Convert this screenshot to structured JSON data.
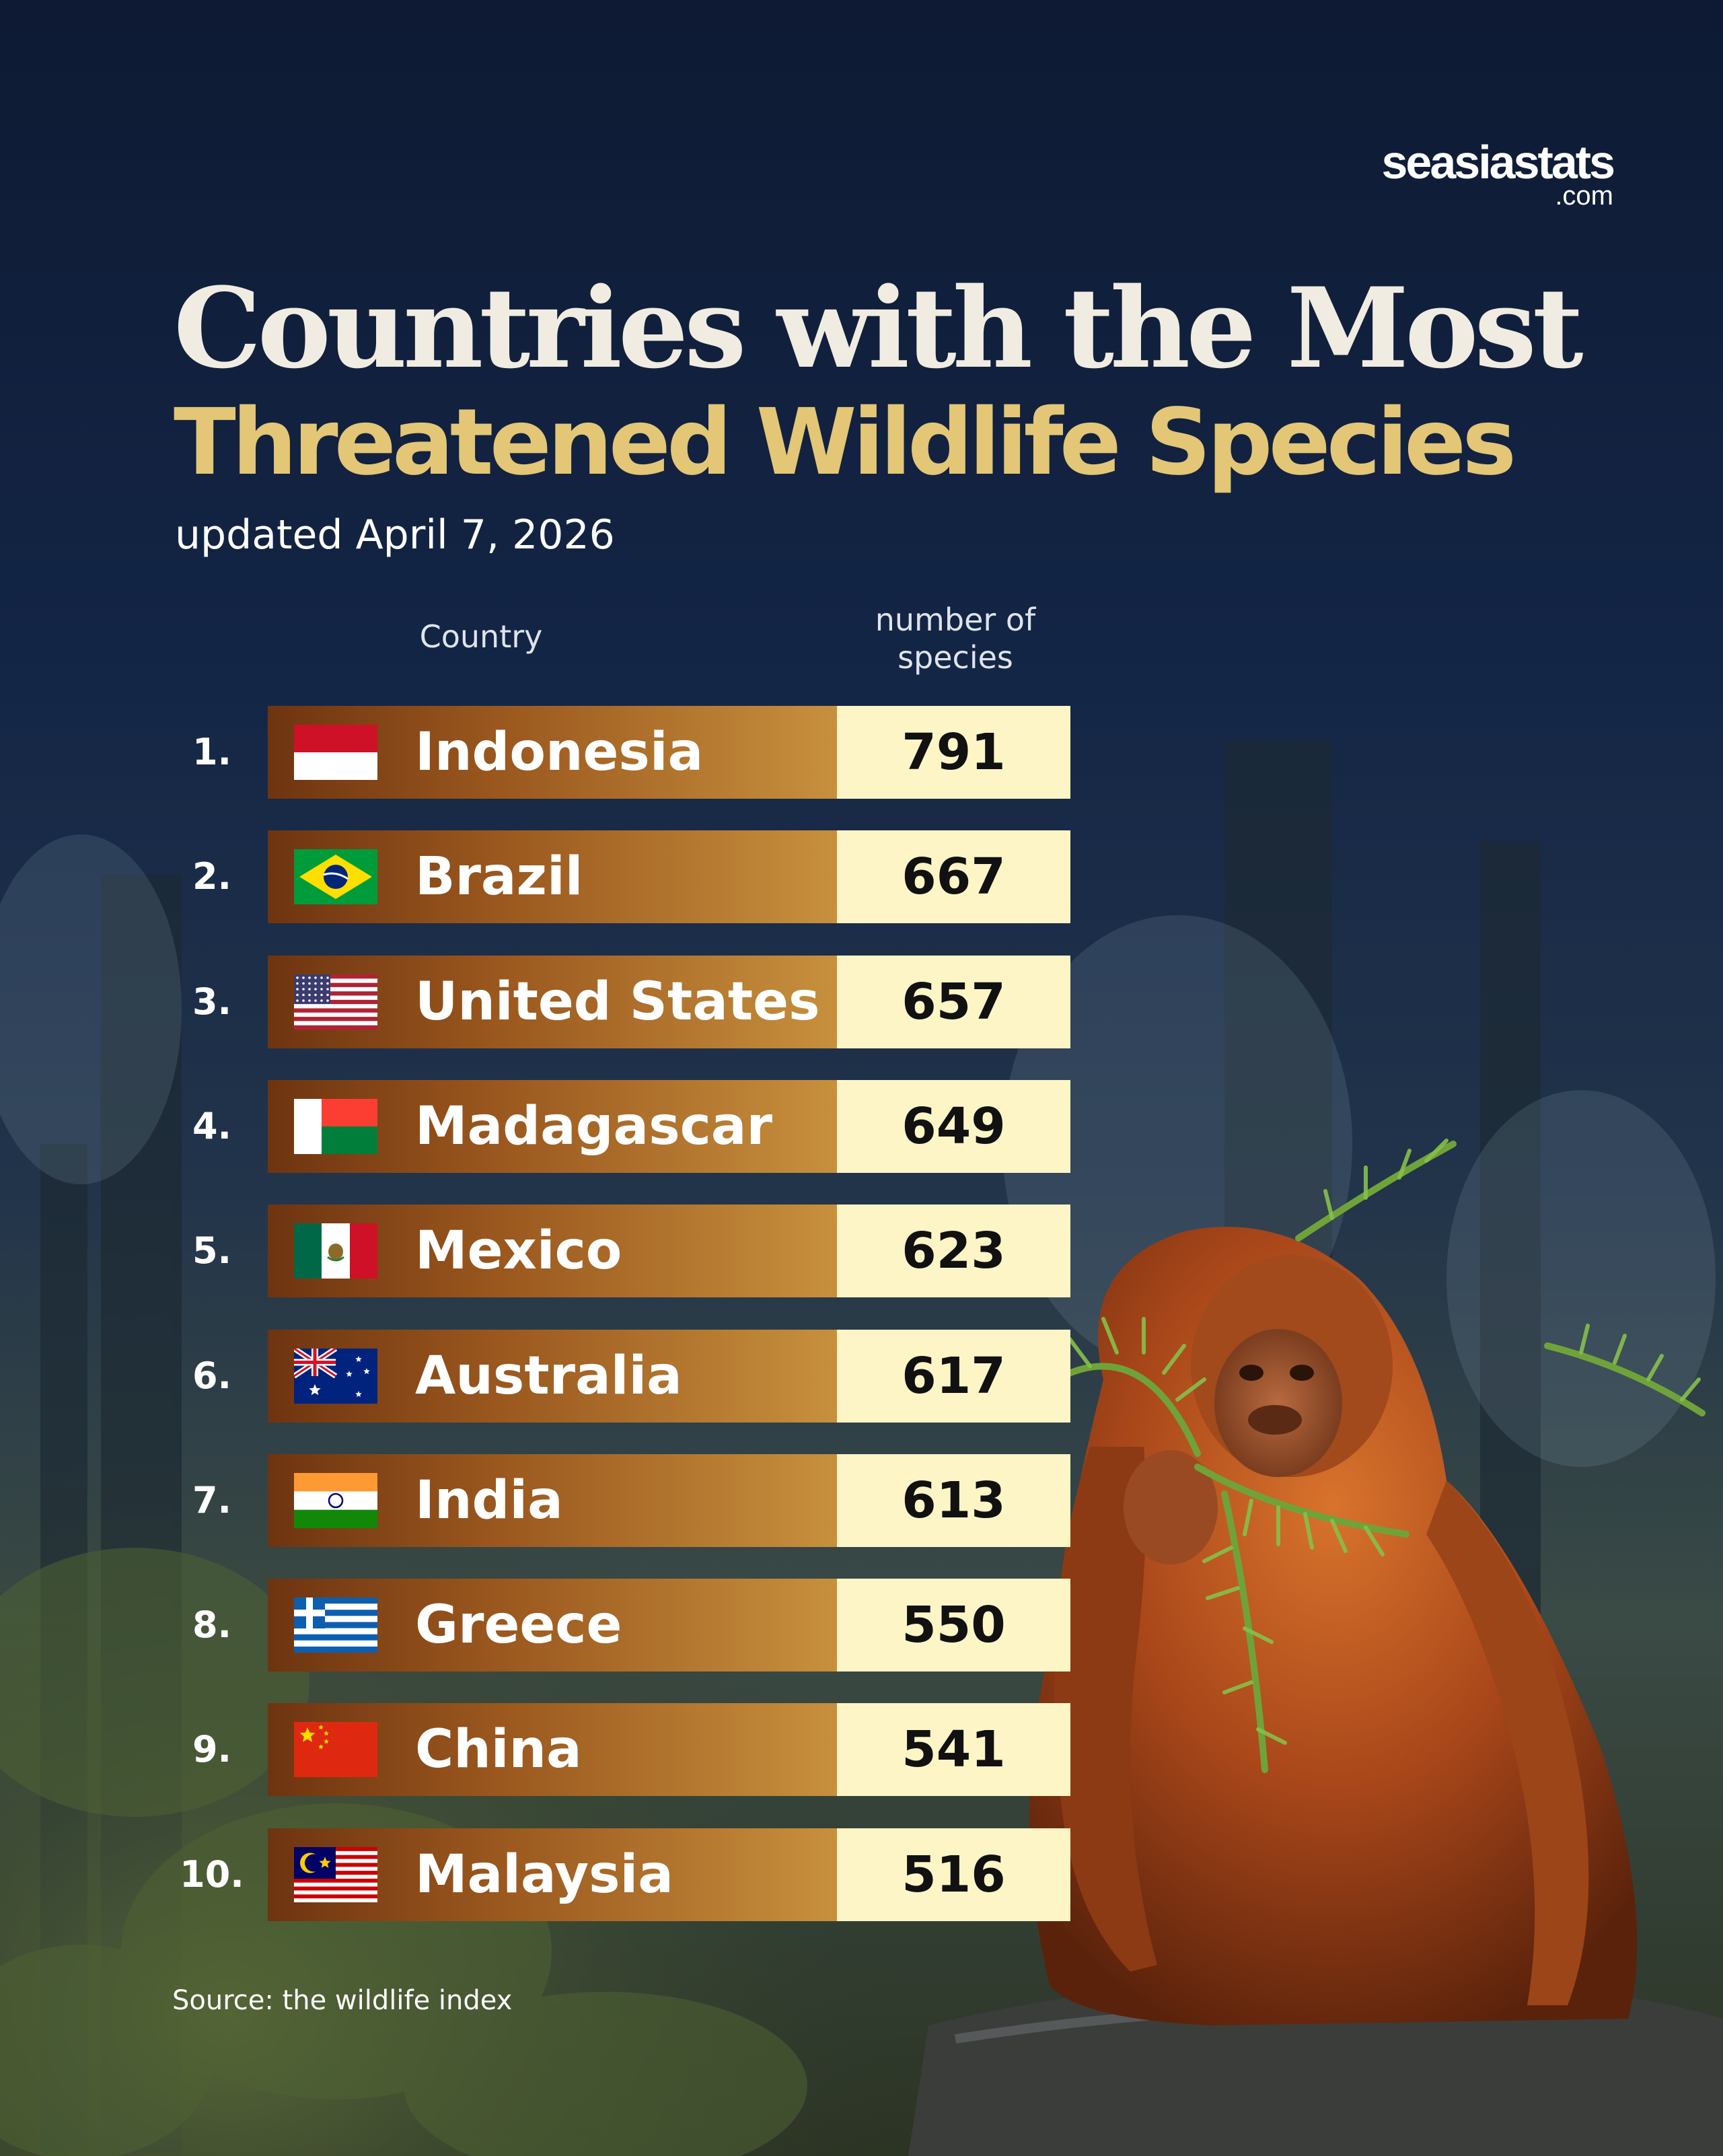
{
  "brand": {
    "name": "seasiastats",
    "tld": ".com"
  },
  "title_line1": "Countries with the Most",
  "title_line2": "Threatened Wildlife Species",
  "subtitle": "updated April 7, 2026",
  "source": "Source: the wildlife index",
  "colors": {
    "background": "#101d35",
    "title": "#f1ece1",
    "title_accent": "#e3c676",
    "bar_dark": "#6e3410",
    "bar_light": "#c7903d",
    "value_box": "#fdf5c5"
  },
  "chart_data": {
    "type": "table",
    "columns": [
      "Country",
      "number of species"
    ],
    "column_header_country": "Country",
    "column_header_number": [
      "number of",
      "species"
    ],
    "rows": [
      {
        "rank": "1.",
        "country": "Indonesia",
        "value": 791,
        "flag": "indonesia-flag-icon"
      },
      {
        "rank": "2.",
        "country": "Brazil",
        "value": 667,
        "flag": "brazil-flag-icon"
      },
      {
        "rank": "3.",
        "country": "United States",
        "value": 657,
        "flag": "united-states-flag-icon"
      },
      {
        "rank": "4.",
        "country": "Madagascar",
        "value": 649,
        "flag": "madagascar-flag-icon"
      },
      {
        "rank": "5.",
        "country": "Mexico",
        "value": 623,
        "flag": "mexico-flag-icon"
      },
      {
        "rank": "6.",
        "country": "Australia",
        "value": 617,
        "flag": "australia-flag-icon"
      },
      {
        "rank": "7.",
        "country": "India",
        "value": 613,
        "flag": "india-flag-icon"
      },
      {
        "rank": "8.",
        "country": "Greece",
        "value": 550,
        "flag": "greece-flag-icon"
      },
      {
        "rank": "9.",
        "country": "China",
        "value": 541,
        "flag": "china-flag-icon"
      },
      {
        "rank": "10.",
        "country": "Malaysia",
        "value": 516,
        "flag": "malaysia-flag-icon"
      }
    ]
  }
}
